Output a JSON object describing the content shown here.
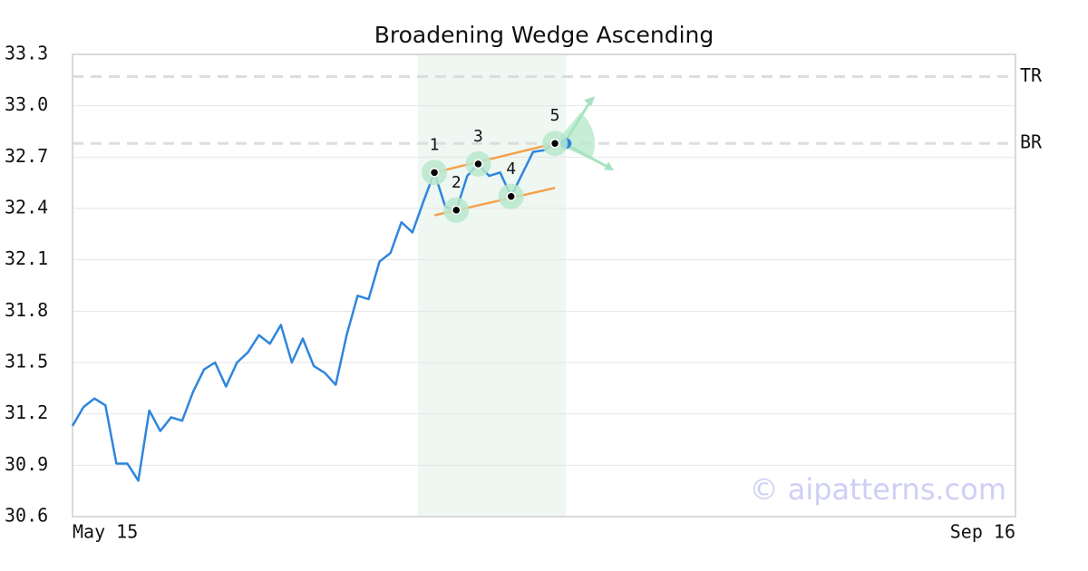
{
  "chart_data": {
    "type": "line",
    "title": "Broadening Wedge Ascending",
    "categories": [
      "May 15",
      null,
      null,
      null,
      null,
      null,
      null,
      null,
      null,
      null,
      null,
      null,
      null,
      null,
      null,
      null,
      null,
      null,
      null,
      null,
      null,
      null,
      null,
      null,
      null,
      null,
      null,
      null,
      null,
      null,
      null,
      null,
      null,
      null,
      null,
      null,
      null,
      null,
      null,
      null,
      null,
      null,
      null,
      null,
      null,
      null,
      null,
      null,
      null,
      null,
      null,
      null,
      null,
      null,
      null,
      null,
      null,
      null,
      null,
      null,
      null,
      null,
      null,
      null,
      null,
      null,
      null,
      null,
      null,
      null,
      null,
      null,
      null,
      null,
      null,
      null,
      null,
      null,
      null,
      null,
      null,
      null,
      null,
      null,
      null,
      null,
      "Sep 16"
    ],
    "series": [
      {
        "color": "#2e86de",
        "values": [
          31.13,
          31.24,
          31.29,
          31.25,
          30.91,
          30.91,
          30.81,
          31.22,
          31.1,
          31.18,
          31.16,
          31.33,
          31.46,
          31.5,
          31.36,
          31.5,
          31.56,
          31.66,
          31.61,
          31.72,
          31.5,
          31.64,
          31.48,
          31.44,
          31.37,
          31.66,
          31.89,
          31.87,
          32.09,
          32.14,
          32.32,
          32.26,
          32.44,
          32.61,
          32.41,
          32.39,
          32.59,
          32.66,
          32.59,
          32.61,
          32.47,
          32.6,
          32.73,
          32.74,
          32.78,
          32.78,
          null,
          null,
          null,
          null,
          null,
          null,
          null,
          null,
          null,
          null,
          null,
          null,
          null,
          null,
          null,
          null,
          null,
          null,
          null,
          null,
          null,
          null,
          null,
          null,
          null,
          null,
          null,
          null,
          null,
          null,
          null,
          null,
          null,
          null,
          null,
          null,
          null,
          null,
          null,
          null,
          null
        ]
      }
    ],
    "pattern_points": [
      {
        "label": "1",
        "x": 33,
        "value": 32.61
      },
      {
        "label": "2",
        "x": 35,
        "value": 32.39
      },
      {
        "label": "3",
        "x": 37,
        "value": 32.66
      },
      {
        "label": "4",
        "x": 40,
        "value": 32.47
      },
      {
        "label": "5",
        "x": 44,
        "value": 32.78
      }
    ],
    "trendlines": [
      {
        "color": "#f5a04a",
        "x": [
          33,
          44
        ],
        "values": [
          32.61,
          32.78
        ]
      },
      {
        "color": "#f5a04a",
        "x": [
          33,
          44
        ],
        "values": [
          32.36,
          32.52
        ]
      }
    ],
    "levels": [
      {
        "label": "TR",
        "value": 33.17
      },
      {
        "label": "BR",
        "value": 32.78
      }
    ],
    "highlight_range": [
      31.5,
      45
    ],
    "ylim": [
      30.6,
      33.3
    ],
    "yticks": [
      30.6,
      30.9,
      31.2,
      31.5,
      31.8,
      32.1,
      32.4,
      32.7,
      {
        "value": 33,
        "label": "33.0"
      },
      33.3
    ],
    "grid": true,
    "watermark": "© aipatterns.com"
  }
}
